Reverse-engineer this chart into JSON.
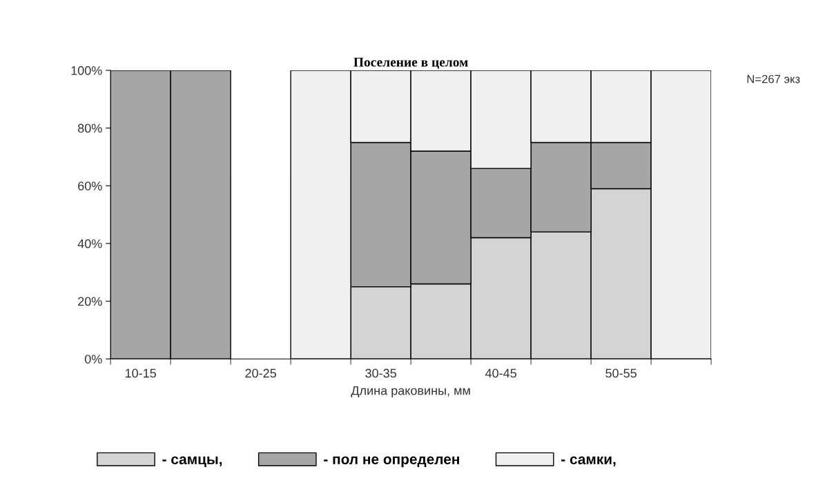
{
  "chart_data": {
    "type": "bar",
    "title": "Поселение в целом",
    "xlabel": "Длина раковины, мм",
    "categories": [
      "10-15",
      null,
      "20-25",
      null,
      "30-35",
      null,
      "40-45",
      null,
      "50-55",
      null
    ],
    "stacked": true,
    "series": [
      {
        "name": "- самцы,",
        "color": "#d4d4d4",
        "values": [
          0,
          0,
          0,
          0,
          25,
          26,
          42,
          44,
          59,
          0
        ]
      },
      {
        "name": "- пол не определен",
        "color": "#a6a6a6",
        "values": [
          100,
          100,
          0,
          0,
          50,
          46,
          24,
          31,
          16,
          0
        ]
      },
      {
        "name": "- самки,",
        "color": "#f0f0f0",
        "values": [
          0,
          0,
          0,
          100,
          25,
          28,
          34,
          25,
          25,
          100
        ]
      }
    ],
    "ylim": [
      0,
      100
    ],
    "yticks": [
      {
        "value": 0,
        "label": "0%"
      },
      {
        "value": 20,
        "label": "20%"
      },
      {
        "value": 40,
        "label": "40%"
      },
      {
        "value": 60,
        "label": "60%"
      },
      {
        "value": 80,
        "label": "80%"
      },
      {
        "value": 100,
        "label": "100%"
      }
    ],
    "grid": false,
    "legend": "bottom",
    "annotations": [
      "N=267 экз"
    ]
  }
}
